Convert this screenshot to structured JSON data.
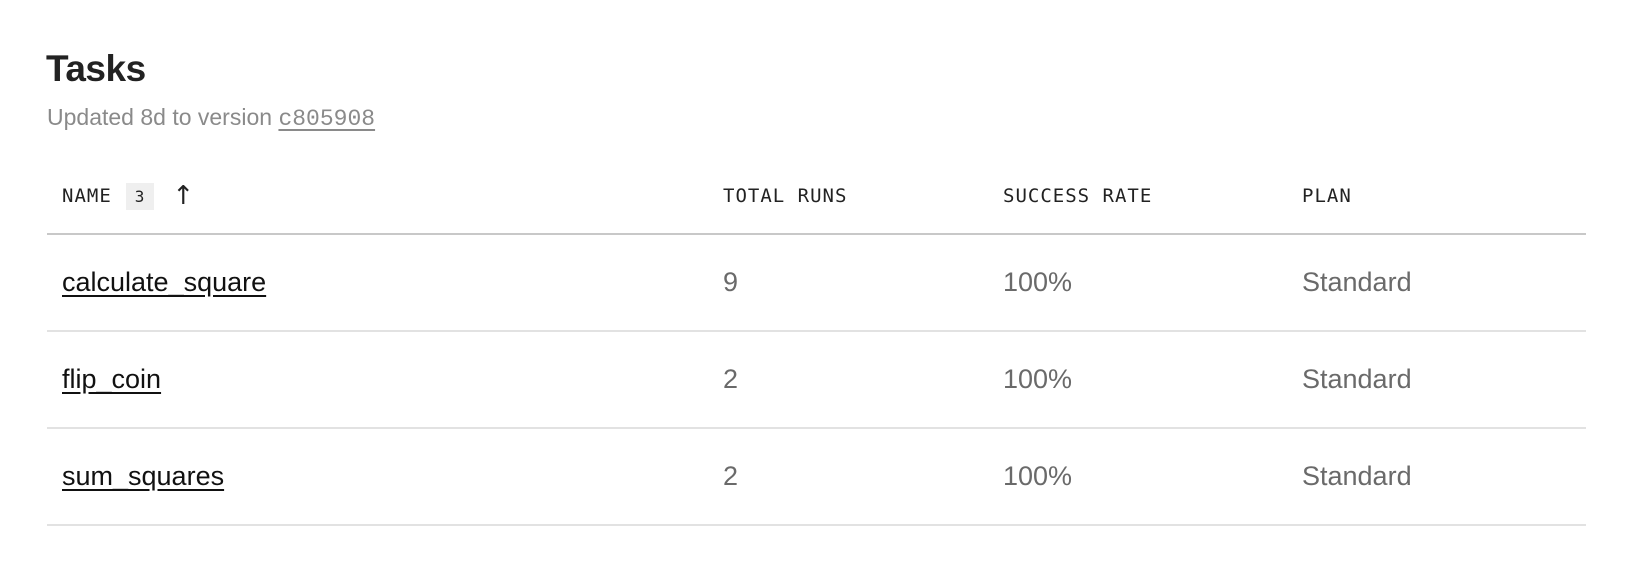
{
  "header": {
    "title": "Tasks",
    "subtitle_prefix": "Updated 8d to version ",
    "version": "c805908"
  },
  "table": {
    "columns": {
      "name": "NAME",
      "name_count": "3",
      "sort_icon": "arrow-up-icon",
      "total_runs": "TOTAL RUNS",
      "success_rate": "SUCCESS RATE",
      "plan": "PLAN"
    },
    "rows": [
      {
        "name": "calculate_square",
        "total_runs": "9",
        "success_rate": "100%",
        "plan": "Standard"
      },
      {
        "name": "flip_coin",
        "total_runs": "2",
        "success_rate": "100%",
        "plan": "Standard"
      },
      {
        "name": "sum_squares",
        "total_runs": "2",
        "success_rate": "100%",
        "plan": "Standard"
      }
    ]
  }
}
